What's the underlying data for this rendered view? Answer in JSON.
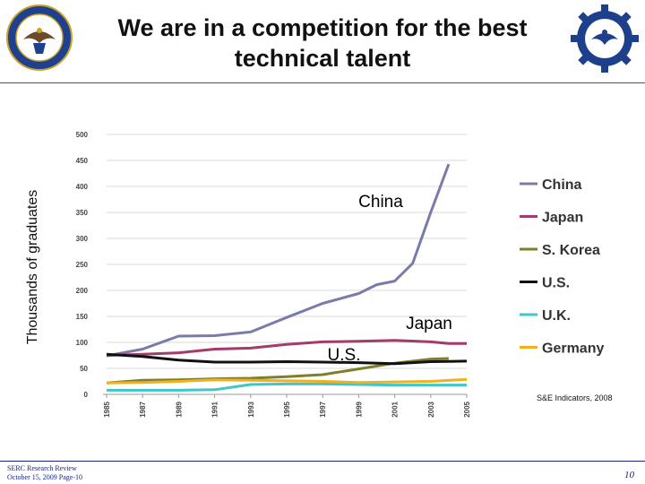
{
  "header": {
    "title_line1": "We are in a competition for the best",
    "title_line2": "technical talent",
    "left_seal": "department-of-defense-seal",
    "right_seal": "sercs-gear-logo"
  },
  "footer": {
    "line1": "SERC Research Review",
    "line2": "October 15, 2009 Page-10",
    "page_number": "10"
  },
  "chart_data": {
    "type": "line",
    "ylabel": "Thousands of graduates",
    "xlabel": "",
    "ylim": [
      0,
      500
    ],
    "yticks": [
      "0",
      "50",
      "100",
      "150",
      "200",
      "250",
      "300",
      "350",
      "400",
      "450",
      "500"
    ],
    "xlim": [
      1985,
      2005
    ],
    "xticks": [
      "1985",
      "1987",
      "1989",
      "1991",
      "1993",
      "1995",
      "1997",
      "1999",
      "2001",
      "2003",
      "2005"
    ],
    "grid": true,
    "legend_position": "right",
    "source_note": "S&E Indicators, 2008",
    "annotations": [
      {
        "text": "China",
        "series": "China"
      },
      {
        "text": "Japan",
        "series": "Japan"
      },
      {
        "text": "U.S.",
        "series": "U.S."
      }
    ],
    "series": [
      {
        "name": "China",
        "color": "#7b7bab",
        "x": [
          1985,
          1987,
          1989,
          1991,
          1993,
          1995,
          1997,
          1999,
          2000,
          2001,
          2002,
          2003,
          2004
        ],
        "y": [
          74,
          87,
          112,
          113,
          120,
          148,
          175,
          194,
          211,
          218,
          252,
          350,
          443
        ]
      },
      {
        "name": "Japan",
        "color": "#a33b6b",
        "x": [
          1985,
          1987,
          1989,
          1991,
          1993,
          1995,
          1997,
          1999,
          2001,
          2003,
          2004,
          2005
        ],
        "y": [
          75,
          77,
          80,
          87,
          89,
          96,
          101,
          102,
          104,
          101,
          98,
          98
        ]
      },
      {
        "name": "S. Korea",
        "color": "#7f7f2a",
        "x": [
          1985,
          1987,
          1989,
          1991,
          1993,
          1995,
          1997,
          1999,
          2001,
          2003,
          2004
        ],
        "y": [
          22,
          27,
          28,
          30,
          31,
          34,
          38,
          49,
          60,
          68,
          69
        ]
      },
      {
        "name": "U.S.",
        "color": "#111111",
        "x": [
          1985,
          1987,
          1989,
          1991,
          1993,
          1995,
          1997,
          1999,
          2001,
          2003,
          2005
        ],
        "y": [
          77,
          73,
          66,
          62,
          62,
          63,
          62,
          61,
          59,
          63,
          64
        ]
      },
      {
        "name": "U.K.",
        "color": "#3fc6c8",
        "x": [
          1985,
          1987,
          1989,
          1991,
          1993,
          1995,
          1997,
          1999,
          2001,
          2003,
          2005
        ],
        "y": [
          8,
          8,
          8,
          9,
          19,
          20,
          20,
          19,
          18,
          18,
          18
        ]
      },
      {
        "name": "Germany",
        "color": "#f2b01e",
        "x": [
          1985,
          1987,
          1989,
          1991,
          1993,
          1995,
          1997,
          1999,
          2001,
          2003,
          2005
        ],
        "y": [
          22,
          23,
          25,
          28,
          27,
          26,
          25,
          23,
          24,
          25,
          29
        ]
      }
    ]
  }
}
